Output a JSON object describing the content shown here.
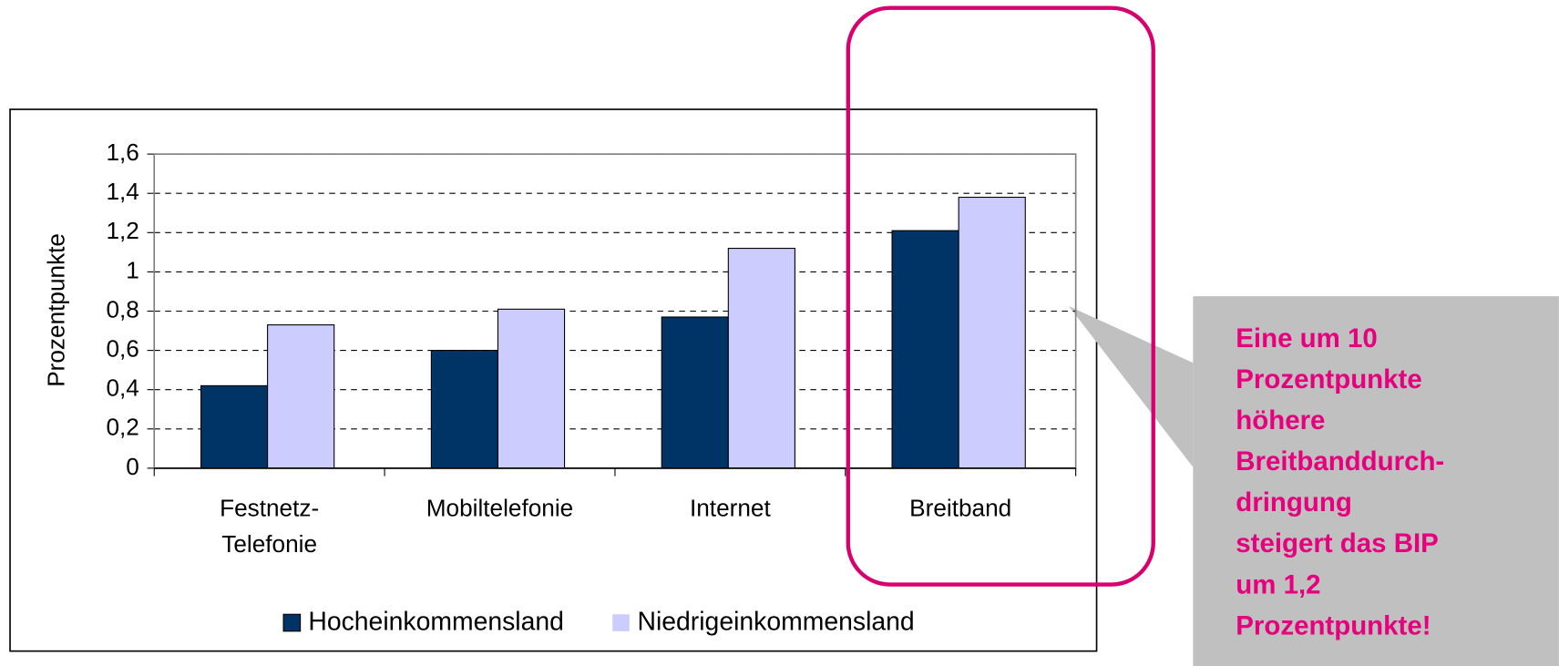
{
  "chart_data": {
    "type": "bar",
    "y_label": "Prozentpunkte",
    "categories": [
      "Festnetz-\nTelefonie",
      "Mobiltelefonie",
      "Internet",
      "Breitband"
    ],
    "series": [
      {
        "name": "Hocheinkommensland",
        "color": "#003366",
        "values": [
          0.42,
          0.6,
          0.77,
          1.21
        ]
      },
      {
        "name": "Niedrigeinkommensland",
        "color": "#ccccff",
        "values": [
          0.73,
          0.81,
          1.12,
          1.38
        ]
      }
    ],
    "ylim": [
      0,
      1.6
    ],
    "yticks": [
      0,
      {
        "value": 0.2,
        "label": "0,2"
      },
      {
        "value": 0.4,
        "label": "0,4"
      },
      {
        "value": 0.6,
        "label": "0,6"
      },
      {
        "value": 0.8,
        "label": "0,8"
      },
      1,
      {
        "value": 1.2,
        "label": "1,2"
      },
      {
        "value": 1.4,
        "label": "1,4"
      },
      {
        "value": 1.6,
        "label": "1,6"
      }
    ],
    "grid": true,
    "annotation": [
      "Eine um 10",
      "Prozentpunkte",
      "höhere",
      "Breitbanddurch-",
      "dringung",
      "steigert das BIP",
      "um 1,2",
      "Prozentpunkte!"
    ]
  }
}
